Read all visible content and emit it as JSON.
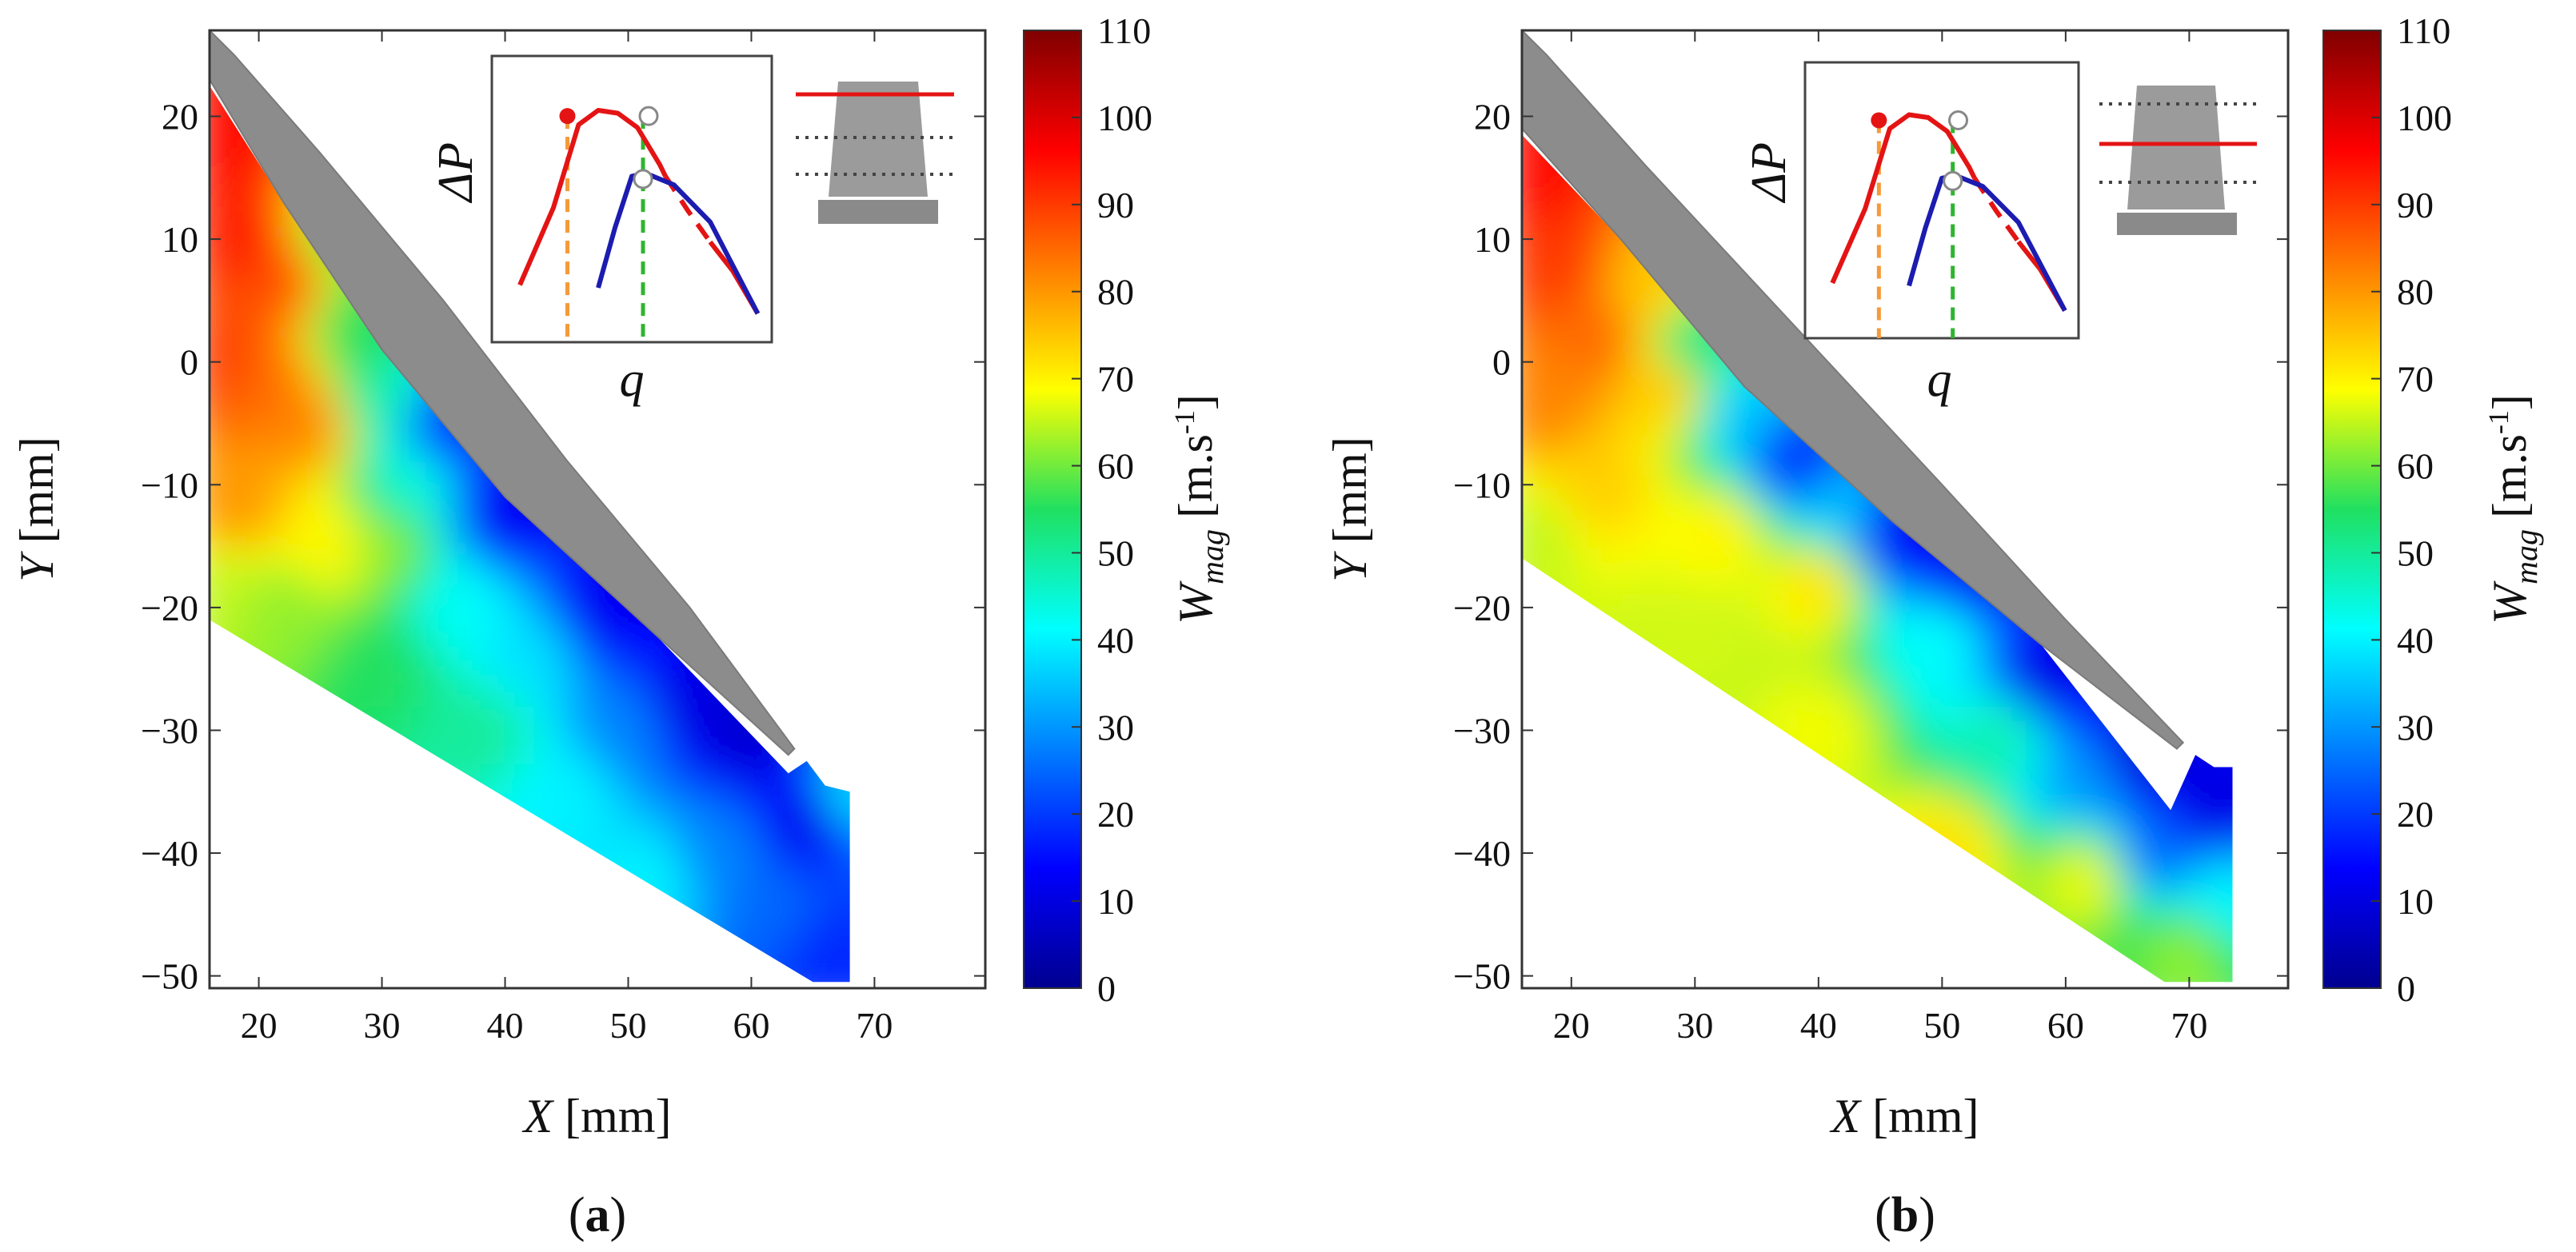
{
  "chart_data": [
    {
      "type": "heatmap",
      "panel": "a",
      "caption_open": "(",
      "caption_label": "a",
      "caption_close": ")",
      "xlabel_var": "X",
      "xlabel_unit": " [mm]",
      "ylabel_var": "Y",
      "ylabel_unit": " [mm]",
      "xlim": [
        16,
        79
      ],
      "ylim": [
        -51,
        27
      ],
      "xticks": [
        20,
        30,
        40,
        50,
        60,
        70
      ],
      "yticks": [
        20,
        10,
        0,
        -10,
        -20,
        -30,
        -40,
        -50
      ],
      "blade_polygon": [
        [
          16,
          27
        ],
        [
          18,
          25
        ],
        [
          25,
          17
        ],
        [
          35,
          5
        ],
        [
          45,
          -8
        ],
        [
          55,
          -20
        ],
        [
          63.5,
          -31.5
        ],
        [
          63,
          -32
        ],
        [
          52,
          -22
        ],
        [
          40,
          -11
        ],
        [
          30,
          1
        ],
        [
          22,
          13
        ],
        [
          16,
          23
        ]
      ],
      "flow_region_polygon": [
        [
          16,
          22.5
        ],
        [
          22,
          13
        ],
        [
          30,
          1
        ],
        [
          40,
          -11
        ],
        [
          52,
          -22
        ],
        [
          63,
          -33.5
        ],
        [
          64.5,
          -32.5
        ],
        [
          66,
          -34.5
        ],
        [
          68,
          -35
        ],
        [
          68,
          -50.5
        ],
        [
          65,
          -50.5
        ],
        [
          16,
          -21
        ]
      ],
      "field_points": [
        {
          "x": 17,
          "y": 18,
          "w": 95
        },
        {
          "x": 19,
          "y": 10,
          "w": 93
        },
        {
          "x": 17,
          "y": 0,
          "w": 90
        },
        {
          "x": 20,
          "y": -2,
          "w": 85
        },
        {
          "x": 22,
          "y": 7,
          "w": 88
        },
        {
          "x": 24,
          "y": -5,
          "w": 82
        },
        {
          "x": 18,
          "y": -12,
          "w": 80
        },
        {
          "x": 17,
          "y": -18,
          "w": 65
        },
        {
          "x": 22,
          "y": -20,
          "w": 62
        },
        {
          "x": 26,
          "y": 10,
          "w": 60
        },
        {
          "x": 28,
          "y": 3,
          "w": 55
        },
        {
          "x": 30,
          "y": -3,
          "w": 48
        },
        {
          "x": 26,
          "y": -15,
          "w": 70
        },
        {
          "x": 30,
          "y": -15,
          "w": 62
        },
        {
          "x": 32,
          "y": -10,
          "w": 45
        },
        {
          "x": 30,
          "y": -25,
          "w": 55
        },
        {
          "x": 36,
          "y": -20,
          "w": 42
        },
        {
          "x": 35,
          "y": -5,
          "w": 18
        },
        {
          "x": 40,
          "y": -12,
          "w": 12
        },
        {
          "x": 38,
          "y": -30,
          "w": 50
        },
        {
          "x": 42,
          "y": -24,
          "w": 38
        },
        {
          "x": 45,
          "y": -35,
          "w": 40
        },
        {
          "x": 48,
          "y": -20,
          "w": 12
        },
        {
          "x": 50,
          "y": -30,
          "w": 28
        },
        {
          "x": 52,
          "y": -42,
          "w": 40
        },
        {
          "x": 55,
          "y": -28,
          "w": 10
        },
        {
          "x": 57,
          "y": -40,
          "w": 28
        },
        {
          "x": 60,
          "y": -30,
          "w": 8
        },
        {
          "x": 62,
          "y": -45,
          "w": 25
        },
        {
          "x": 65,
          "y": -37,
          "w": 10
        },
        {
          "x": 66,
          "y": -48,
          "w": 18
        },
        {
          "x": 67.5,
          "y": -35.5,
          "w": 38
        }
      ],
      "colorbar": {
        "label_var": "W",
        "label_sub": "mag",
        "label_unit": "[m.s",
        "label_exp": "-1",
        "label_close": "]",
        "min": 0,
        "max": 110,
        "ticks": [
          110,
          100,
          90,
          80,
          70,
          60,
          50,
          40,
          30,
          20,
          10,
          0
        ]
      },
      "inset": {
        "ylabel": "ΔP",
        "xlabel": "q",
        "blade_line": "top",
        "red_curve_solid": [
          [
            0.1,
            0.2
          ],
          [
            0.22,
            0.47
          ],
          [
            0.31,
            0.76
          ],
          [
            0.38,
            0.81
          ],
          [
            0.45,
            0.8
          ],
          [
            0.52,
            0.75
          ],
          [
            0.6,
            0.62
          ],
          [
            0.62,
            0.58
          ]
        ],
        "red_curve_dashed": [
          [
            0.62,
            0.58
          ],
          [
            0.7,
            0.46
          ],
          [
            0.78,
            0.35
          ]
        ],
        "red_curve_tail": [
          [
            0.78,
            0.35
          ],
          [
            0.86,
            0.25
          ],
          [
            0.95,
            0.1
          ]
        ],
        "blue_curve": [
          [
            0.38,
            0.19
          ],
          [
            0.44,
            0.4
          ],
          [
            0.5,
            0.58
          ],
          [
            0.55,
            0.59
          ],
          [
            0.65,
            0.55
          ],
          [
            0.78,
            0.42
          ],
          [
            0.95,
            0.1
          ]
        ],
        "orange_marker_x": 0.27,
        "green_marker_x": 0.54,
        "red_dot": [
          0.27,
          0.79
        ],
        "circle_top": [
          0.56,
          0.79
        ],
        "circle_mid": [
          0.54,
          0.57
        ],
        "accent_red": "#e41414",
        "accent_blue": "#1c1cb0",
        "accent_orange": "#f59a3a",
        "accent_green": "#2fb52f"
      }
    },
    {
      "type": "heatmap",
      "panel": "b",
      "caption_open": "(",
      "caption_label": "b",
      "caption_close": ")",
      "xlabel_var": "X",
      "xlabel_unit": " [mm]",
      "ylabel_var": "Y",
      "ylabel_unit": " [mm]",
      "xlim": [
        16,
        78
      ],
      "ylim": [
        -51,
        27
      ],
      "xticks": [
        20,
        30,
        40,
        50,
        60,
        70
      ],
      "yticks": [
        20,
        10,
        0,
        -10,
        -20,
        -30,
        -40,
        -50
      ],
      "blade_polygon": [
        [
          16,
          27
        ],
        [
          18,
          25
        ],
        [
          26,
          16
        ],
        [
          38,
          3
        ],
        [
          50,
          -10
        ],
        [
          60,
          -21
        ],
        [
          69.5,
          -31
        ],
        [
          69,
          -31.5
        ],
        [
          58,
          -23
        ],
        [
          46,
          -13
        ],
        [
          34,
          -2
        ],
        [
          24,
          10
        ],
        [
          16,
          19
        ]
      ],
      "flow_region_polygon": [
        [
          16,
          18.5
        ],
        [
          24,
          10
        ],
        [
          34,
          -2
        ],
        [
          46,
          -13
        ],
        [
          58,
          -23
        ],
        [
          68.5,
          -36.5
        ],
        [
          70.5,
          -32
        ],
        [
          72,
          -33
        ],
        [
          73.5,
          -33
        ],
        [
          73.5,
          -50.5
        ],
        [
          68,
          -50.5
        ],
        [
          16,
          -16
        ]
      ],
      "field_points": [
        {
          "x": 17,
          "y": 15,
          "w": 95
        },
        {
          "x": 19,
          "y": 8,
          "w": 90
        },
        {
          "x": 22,
          "y": 2,
          "w": 85
        },
        {
          "x": 18,
          "y": -3,
          "w": 82
        },
        {
          "x": 26,
          "y": 6,
          "w": 75
        },
        {
          "x": 28,
          "y": -2,
          "w": 75
        },
        {
          "x": 22,
          "y": -10,
          "w": 74
        },
        {
          "x": 17,
          "y": -14,
          "w": 65
        },
        {
          "x": 30,
          "y": 1,
          "w": 50
        },
        {
          "x": 34,
          "y": -4,
          "w": 35
        },
        {
          "x": 38,
          "y": -8,
          "w": 18
        },
        {
          "x": 32,
          "y": -14,
          "w": 70
        },
        {
          "x": 40,
          "y": -18,
          "w": 72
        },
        {
          "x": 42,
          "y": -12,
          "w": 35
        },
        {
          "x": 46,
          "y": -14,
          "w": 12
        },
        {
          "x": 30,
          "y": -22,
          "w": 66
        },
        {
          "x": 40,
          "y": -30,
          "w": 68
        },
        {
          "x": 50,
          "y": -22,
          "w": 42
        },
        {
          "x": 52,
          "y": -18,
          "w": 12
        },
        {
          "x": 55,
          "y": -30,
          "w": 48
        },
        {
          "x": 50,
          "y": -40,
          "w": 72
        },
        {
          "x": 58,
          "y": -26,
          "w": 10
        },
        {
          "x": 62,
          "y": -34,
          "w": 30
        },
        {
          "x": 62,
          "y": -42,
          "w": 68
        },
        {
          "x": 66,
          "y": -32,
          "w": 8
        },
        {
          "x": 67,
          "y": -40,
          "w": 25
        },
        {
          "x": 70,
          "y": -48,
          "w": 62
        },
        {
          "x": 72,
          "y": -36,
          "w": 10
        },
        {
          "x": 73,
          "y": -44,
          "w": 40
        }
      ],
      "colorbar": {
        "label_var": "W",
        "label_sub": "mag",
        "label_unit": "[m.s",
        "label_exp": "-1",
        "label_close": "]",
        "min": 0,
        "max": 110,
        "ticks": [
          110,
          100,
          90,
          80,
          70,
          60,
          50,
          40,
          30,
          20,
          10,
          0
        ]
      },
      "inset": {
        "ylabel": "ΔP",
        "xlabel": "q",
        "blade_line": "middle",
        "red_curve_solid": [
          [
            0.1,
            0.2
          ],
          [
            0.22,
            0.47
          ],
          [
            0.31,
            0.76
          ],
          [
            0.38,
            0.81
          ],
          [
            0.45,
            0.8
          ],
          [
            0.52,
            0.75
          ],
          [
            0.6,
            0.62
          ],
          [
            0.62,
            0.58
          ]
        ],
        "red_curve_dashed": [
          [
            0.62,
            0.58
          ],
          [
            0.7,
            0.46
          ],
          [
            0.78,
            0.35
          ]
        ],
        "red_curve_tail": [
          [
            0.78,
            0.35
          ],
          [
            0.86,
            0.25
          ],
          [
            0.95,
            0.1
          ]
        ],
        "blue_curve": [
          [
            0.38,
            0.19
          ],
          [
            0.44,
            0.4
          ],
          [
            0.5,
            0.58
          ],
          [
            0.55,
            0.59
          ],
          [
            0.65,
            0.55
          ],
          [
            0.78,
            0.42
          ],
          [
            0.95,
            0.1
          ]
        ],
        "orange_marker_x": 0.27,
        "green_marker_x": 0.54,
        "red_dot": [
          0.27,
          0.79
        ],
        "circle_top": [
          0.56,
          0.79
        ],
        "circle_mid": [
          0.54,
          0.57
        ],
        "accent_red": "#e41414",
        "accent_blue": "#1c1cb0",
        "accent_orange": "#f59a3a",
        "accent_green": "#2fb52f"
      }
    }
  ]
}
